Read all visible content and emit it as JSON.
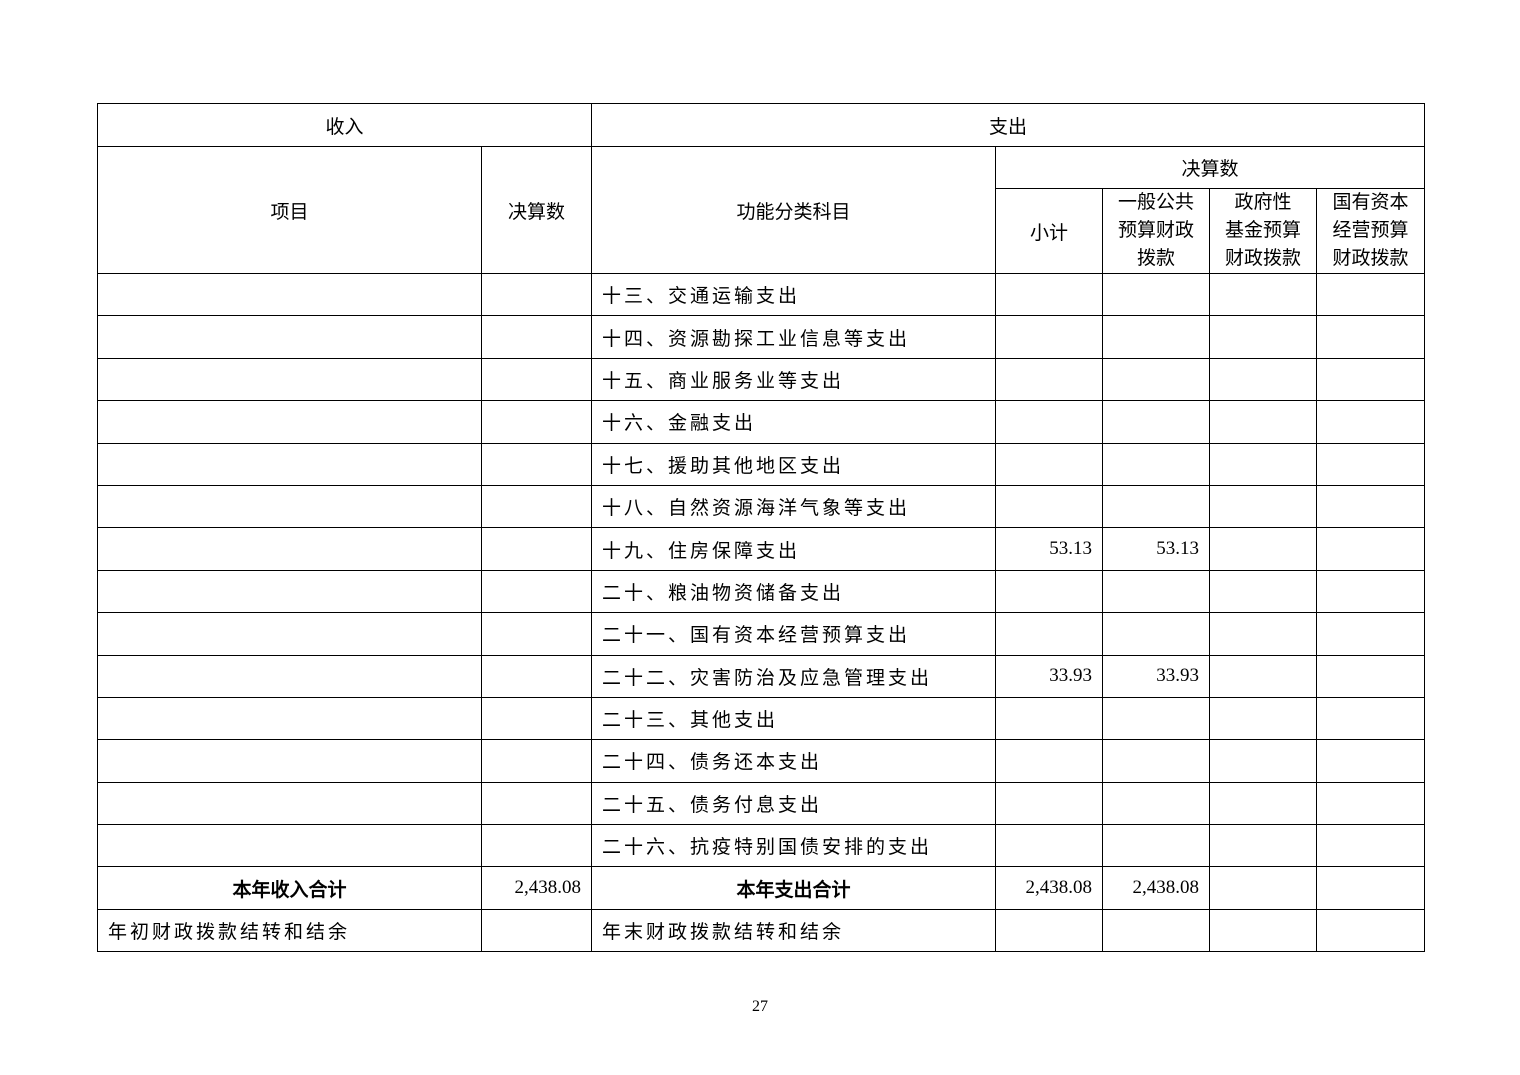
{
  "header": {
    "income": "收入",
    "expense": "支出",
    "item": "项目",
    "final_amount": "决算数",
    "function_category": "功能分类科目",
    "final_amount_group": "决算数",
    "subtotal": "小计",
    "general_public": "一般公共\n预算财政\n拨款",
    "gov_fund": "政府性\n基金预算\n财政拨款",
    "state_capital": "国有资本\n经营预算\n财政拨款"
  },
  "rows": [
    {
      "category": "十三、交通运输支出",
      "subtotal": "",
      "general": ""
    },
    {
      "category": "十四、资源勘探工业信息等支出",
      "subtotal": "",
      "general": ""
    },
    {
      "category": "十五、商业服务业等支出",
      "subtotal": "",
      "general": ""
    },
    {
      "category": "十六、金融支出",
      "subtotal": "",
      "general": ""
    },
    {
      "category": "十七、援助其他地区支出",
      "subtotal": "",
      "general": ""
    },
    {
      "category": "十八、自然资源海洋气象等支出",
      "subtotal": "",
      "general": ""
    },
    {
      "category": "十九、住房保障支出",
      "subtotal": "53.13",
      "general": "53.13"
    },
    {
      "category": "二十、粮油物资储备支出",
      "subtotal": "",
      "general": ""
    },
    {
      "category": "二十一、国有资本经营预算支出",
      "subtotal": "",
      "general": ""
    },
    {
      "category": "二十二、灾害防治及应急管理支出",
      "subtotal": "33.93",
      "general": "33.93"
    },
    {
      "category": "二十三、其他支出",
      "subtotal": "",
      "general": ""
    },
    {
      "category": "二十四、债务还本支出",
      "subtotal": "",
      "general": ""
    },
    {
      "category": "二十五、债务付息支出",
      "subtotal": "",
      "general": ""
    },
    {
      "category": "二十六、抗疫特别国债安排的支出",
      "subtotal": "",
      "general": ""
    }
  ],
  "totals": {
    "income_label": "本年收入合计",
    "income_value": "2,438.08",
    "expense_label": "本年支出合计",
    "subtotal": "2,438.08",
    "general": "2,438.08"
  },
  "carryover": {
    "income_label": "年初财政拨款结转和结余",
    "expense_label": "年末财政拨款结转和结余"
  },
  "page_number": "27"
}
